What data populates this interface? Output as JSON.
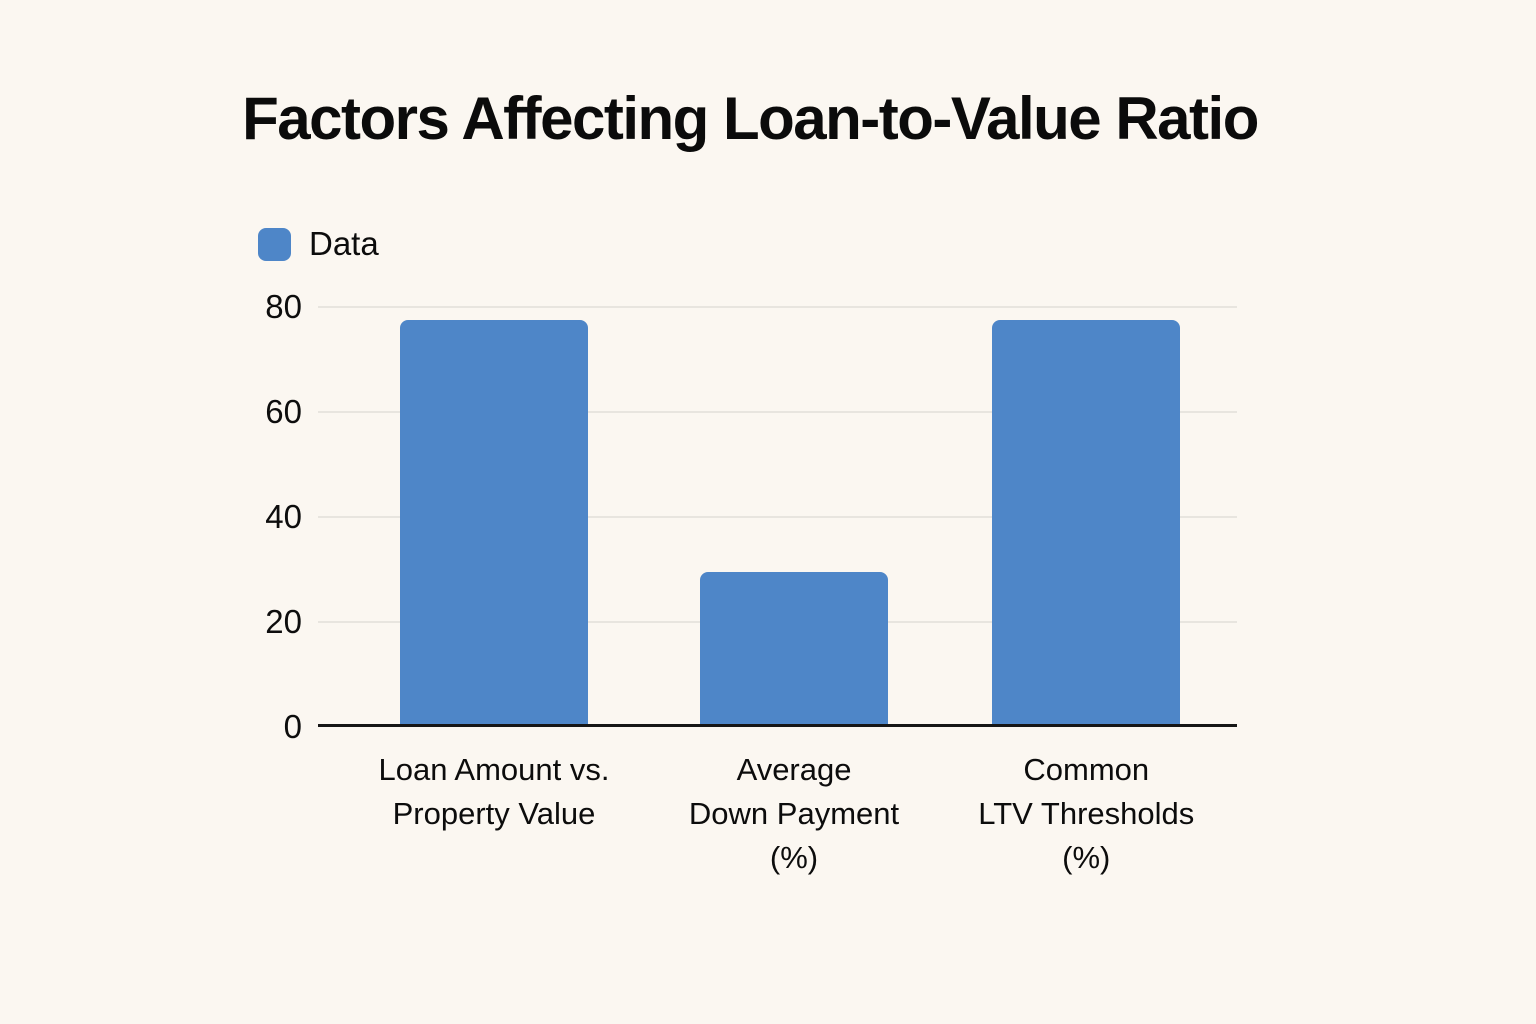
{
  "page": {
    "background_color": "#FBF7F1"
  },
  "title": "Factors Affecting Loan-to-Value Ratio",
  "legend": {
    "label": "Data",
    "swatch_color": "#4E86C8"
  },
  "chart_data": {
    "type": "bar",
    "title": "Factors Affecting Loan-to-Value Ratio",
    "categories": [
      "Loan Amount vs.\nProperty Value",
      "Average\nDown Payment\n(%)",
      "Common\nLTV Thresholds\n(%)"
    ],
    "series": [
      {
        "name": "Data",
        "values": [
          77,
          29,
          77
        ]
      }
    ],
    "xlabel": "",
    "ylabel": "",
    "ylim": [
      0,
      80
    ],
    "yticks": [
      0,
      20,
      40,
      60,
      80
    ],
    "grid": true,
    "legend_position": "top-left",
    "bar_color": "#4E86C8",
    "gridline_color": "#E8E5DF",
    "axis_color": "#161616"
  }
}
